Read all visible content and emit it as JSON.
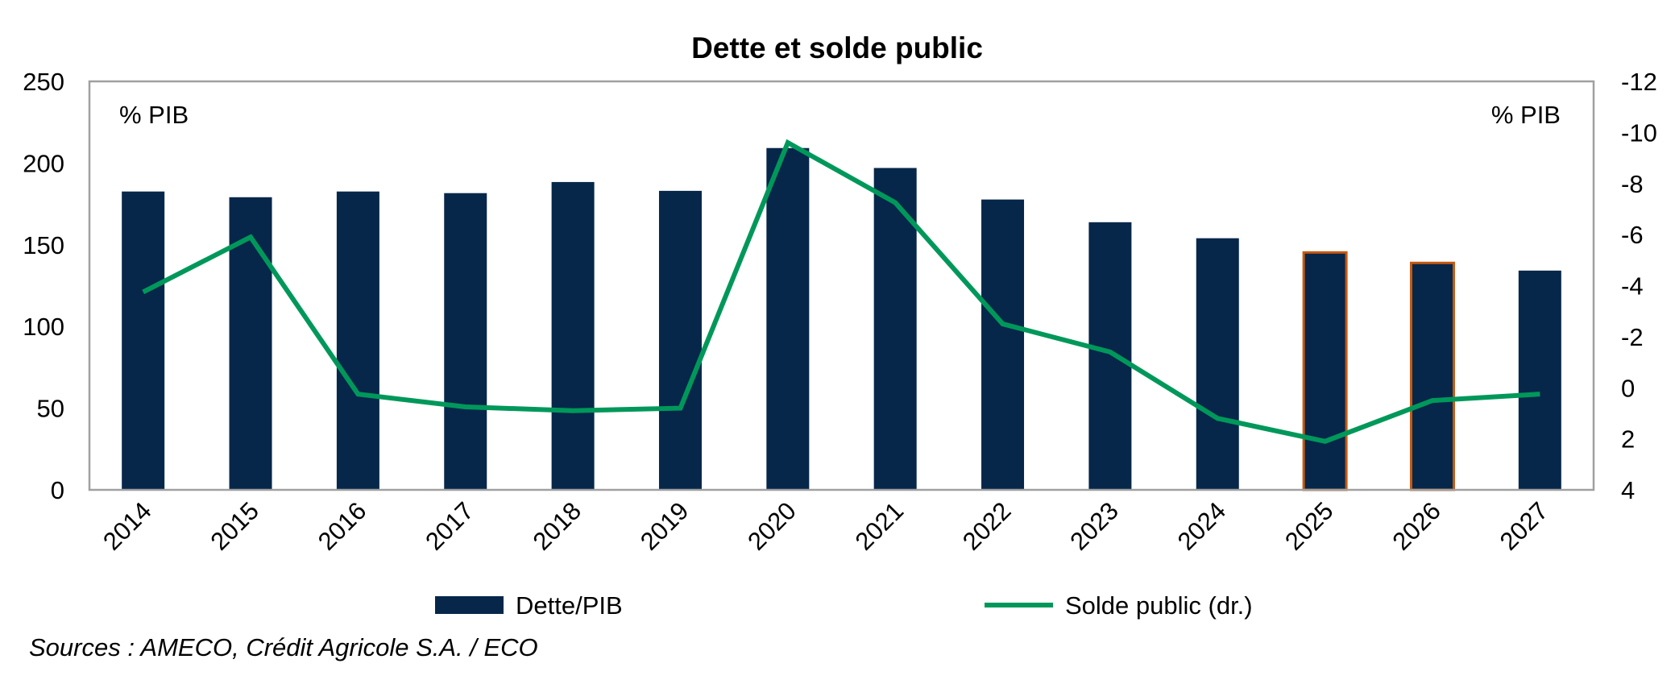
{
  "chart_data": {
    "type": "bar+line",
    "title": "Dette et solde public",
    "categories": [
      "2014",
      "2015",
      "2016",
      "2017",
      "2018",
      "2019",
      "2020",
      "2021",
      "2022",
      "2023",
      "2024",
      "2025",
      "2026",
      "2027"
    ],
    "series": [
      {
        "name": "Dette/PIB",
        "type": "bar",
        "axis": "left",
        "color": "#06274a",
        "values": [
          182.6,
          179.1,
          182.6,
          181.6,
          188.4,
          183.0,
          209.2,
          197.0,
          177.7,
          163.8,
          154.0,
          145.3,
          138.9,
          134.2
        ],
        "highlighted": [
          "2025",
          "2026"
        ],
        "highlight_color": "#c55a11"
      },
      {
        "name": "Solde public (dr.)",
        "type": "line",
        "axis": "right",
        "color": "#00985a",
        "values": [
          -3.75,
          -5.9,
          0.25,
          0.75,
          0.9,
          0.8,
          -9.6,
          -7.25,
          -2.5,
          -1.4,
          1.2,
          2.1,
          0.5,
          0.25
        ]
      }
    ],
    "left_axis": {
      "label": "% PIB",
      "ylim": [
        0,
        250
      ],
      "ticks": [
        0,
        50,
        100,
        150,
        200,
        250
      ]
    },
    "right_axis": {
      "label": "% PIB",
      "ylim": [
        -12,
        4
      ],
      "inverted": true,
      "ticks": [
        -12,
        -10,
        -8,
        -6,
        -4,
        -2,
        0,
        2,
        4
      ]
    },
    "legend": {
      "placement": "bottom"
    },
    "grid": false
  },
  "source": "Sources : AMECO, Crédit Agricole S.A. / ECO"
}
